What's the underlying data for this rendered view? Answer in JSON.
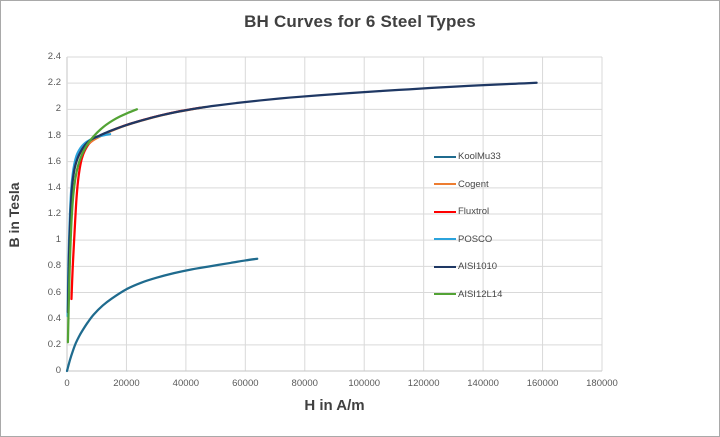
{
  "chart": {
    "title": "BH Curves for 6 Steel Types",
    "x_axis_title": "H in A/m",
    "y_axis_title": "B in Tesla"
  },
  "chart_data": {
    "type": "line",
    "title": "BH Curves for 6 Steel Types",
    "xlabel": "H in A/m",
    "ylabel": "B in Tesla",
    "xlim": [
      0,
      180000
    ],
    "ylim": [
      0,
      2.4
    ],
    "grid": true,
    "legend_position": "inside-right",
    "x_tick_labels": [
      "0",
      "20000",
      "40000",
      "60000",
      "80000",
      "100000",
      "120000",
      "140000",
      "160000",
      "180000"
    ],
    "y_tick_labels": [
      "0",
      "0.2",
      "0.4",
      "0.6",
      "0.8",
      "1",
      "1.2",
      "1.4",
      "1.6",
      "1.8",
      "2",
      "2.2",
      "2.4"
    ],
    "grid_color": "#d9d9d9",
    "axis_line_color": "#c6c6c6",
    "series": [
      {
        "name": "Fluxtrol",
        "color": "#ff0000",
        "points": [
          [
            1500,
            0.55
          ],
          [
            1900,
            0.78
          ],
          [
            2400,
            1.0
          ],
          [
            2800,
            1.17
          ],
          [
            3200,
            1.32
          ],
          [
            3700,
            1.45
          ],
          [
            4300,
            1.55
          ],
          [
            5000,
            1.625
          ],
          [
            6000,
            1.685
          ],
          [
            7500,
            1.74
          ],
          [
            9500,
            1.775
          ],
          [
            12000,
            1.805
          ],
          [
            15000,
            1.838
          ],
          [
            18000,
            1.865
          ],
          [
            21000,
            1.888
          ],
          [
            25000,
            1.915
          ],
          [
            29000,
            1.94
          ],
          [
            33000,
            1.962
          ],
          [
            37000,
            1.982
          ],
          [
            41000,
            1.998
          ],
          [
            45000,
            2.013
          ]
        ]
      },
      {
        "name": "Cogent",
        "color": "#ed7d31",
        "points": [
          [
            400,
            0.55
          ],
          [
            700,
            0.9
          ],
          [
            1100,
            1.18
          ],
          [
            1600,
            1.38
          ],
          [
            2300,
            1.52
          ],
          [
            3100,
            1.6
          ],
          [
            4200,
            1.655
          ],
          [
            5600,
            1.7
          ],
          [
            7500,
            1.743
          ],
          [
            9500,
            1.773
          ],
          [
            12000,
            1.803
          ],
          [
            15000,
            1.836
          ],
          [
            18000,
            1.863
          ],
          [
            21000,
            1.886
          ],
          [
            25000,
            1.913
          ],
          [
            29000,
            1.938
          ],
          [
            33000,
            1.96
          ],
          [
            37000,
            1.98
          ],
          [
            41000,
            1.996
          ],
          [
            44000,
            2.008
          ],
          [
            46500,
            2.018
          ]
        ]
      },
      {
        "name": "POSCO",
        "color": "#2ba3dc",
        "points": [
          [
            200,
            0.42
          ],
          [
            400,
            0.72
          ],
          [
            700,
            1.0
          ],
          [
            1000,
            1.2
          ],
          [
            1400,
            1.38
          ],
          [
            1900,
            1.5
          ],
          [
            2500,
            1.585
          ],
          [
            3200,
            1.645
          ],
          [
            4000,
            1.685
          ],
          [
            5000,
            1.718
          ],
          [
            6200,
            1.745
          ],
          [
            7600,
            1.765
          ],
          [
            9200,
            1.782
          ],
          [
            11000,
            1.795
          ],
          [
            12800,
            1.804
          ],
          [
            14500,
            1.81
          ]
        ]
      },
      {
        "name": "KoolMu33",
        "color": "#1f6b8e",
        "points": [
          [
            0,
            0
          ],
          [
            1000,
            0.085
          ],
          [
            2000,
            0.155
          ],
          [
            3000,
            0.215
          ],
          [
            4000,
            0.262
          ],
          [
            5000,
            0.302
          ],
          [
            7000,
            0.372
          ],
          [
            9000,
            0.432
          ],
          [
            12000,
            0.5
          ],
          [
            15000,
            0.553
          ],
          [
            20000,
            0.625
          ],
          [
            25000,
            0.675
          ],
          [
            30000,
            0.712
          ],
          [
            36000,
            0.748
          ],
          [
            42000,
            0.777
          ],
          [
            48000,
            0.8
          ],
          [
            55000,
            0.826
          ],
          [
            60000,
            0.845
          ],
          [
            64000,
            0.858
          ]
        ]
      },
      {
        "name": "AISI1010",
        "color": "#1f3864",
        "points": [
          [
            300,
            0.45
          ],
          [
            600,
            0.8
          ],
          [
            900,
            1.05
          ],
          [
            1300,
            1.27
          ],
          [
            1800,
            1.43
          ],
          [
            2400,
            1.53
          ],
          [
            3100,
            1.595
          ],
          [
            4000,
            1.65
          ],
          [
            5200,
            1.7
          ],
          [
            6800,
            1.745
          ],
          [
            8800,
            1.778
          ],
          [
            11000,
            1.8
          ],
          [
            14000,
            1.83
          ],
          [
            17000,
            1.856
          ],
          [
            20000,
            1.88
          ],
          [
            24000,
            1.908
          ],
          [
            28000,
            1.933
          ],
          [
            32000,
            1.956
          ],
          [
            36000,
            1.976
          ],
          [
            40000,
            1.993
          ],
          [
            45000,
            2.012
          ],
          [
            50000,
            2.028
          ],
          [
            57000,
            2.048
          ],
          [
            65000,
            2.068
          ],
          [
            75000,
            2.09
          ],
          [
            85000,
            2.108
          ],
          [
            95000,
            2.124
          ],
          [
            105000,
            2.139
          ],
          [
            115000,
            2.153
          ],
          [
            125000,
            2.167
          ],
          [
            135000,
            2.179
          ],
          [
            145000,
            2.19
          ],
          [
            152000,
            2.197
          ],
          [
            158000,
            2.203
          ]
        ]
      },
      {
        "name": "AISI12L14",
        "color": "#53a335",
        "points": [
          [
            300,
            0.22
          ],
          [
            600,
            0.52
          ],
          [
            900,
            0.78
          ],
          [
            1200,
            0.98
          ],
          [
            1600,
            1.18
          ],
          [
            2100,
            1.34
          ],
          [
            2700,
            1.455
          ],
          [
            3400,
            1.54
          ],
          [
            4200,
            1.605
          ],
          [
            5200,
            1.662
          ],
          [
            6400,
            1.715
          ],
          [
            7800,
            1.762
          ],
          [
            9400,
            1.805
          ],
          [
            11200,
            1.845
          ],
          [
            13200,
            1.882
          ],
          [
            15400,
            1.915
          ],
          [
            17800,
            1.945
          ],
          [
            20400,
            1.972
          ],
          [
            23500,
            2.0
          ]
        ]
      }
    ],
    "legend_order": [
      "KoolMu33",
      "Cogent",
      "Fluxtrol",
      "POSCO",
      "AISI1010",
      "AISI12L14"
    ]
  }
}
